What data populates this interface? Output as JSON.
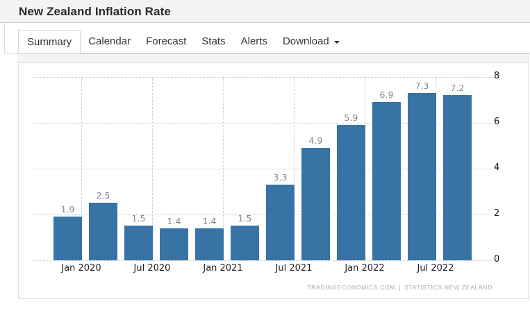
{
  "page": {
    "title": "New Zealand Inflation Rate"
  },
  "tabs": {
    "active": "Summary",
    "items": [
      {
        "label": "Summary"
      },
      {
        "label": "Calendar"
      },
      {
        "label": "Forecast"
      },
      {
        "label": "Stats"
      },
      {
        "label": "Alerts"
      },
      {
        "label": "Download"
      }
    ]
  },
  "chart_data": {
    "type": "bar",
    "title": "New Zealand Inflation Rate",
    "values": [
      1.9,
      2.5,
      1.5,
      1.4,
      1.4,
      1.5,
      3.3,
      4.9,
      5.9,
      6.9,
      7.3,
      7.2
    ],
    "bar_value_labels": [
      "1.9",
      "2.5",
      "1.5",
      "1.4",
      "1.4",
      "1.5",
      "3.3",
      "4.9",
      "5.9",
      "6.9",
      "7.3",
      "7.2"
    ],
    "x_tick_labels": [
      "Jan 2020",
      "Jul 2020",
      "Jan 2021",
      "Jul 2021",
      "Jan 2022",
      "Jul 2022"
    ],
    "y_ticks": [
      0,
      2,
      4,
      6,
      8
    ],
    "ylim": [
      0,
      8
    ],
    "y_axis_position": "right",
    "grid": "dotted",
    "bar_color": "#3773a5",
    "legend": "none",
    "xlabel": "",
    "ylabel": ""
  },
  "attribution": {
    "source_left": "TRADINGECONOMICS.COM",
    "separator": "|",
    "source_right": "STATISTICS NEW ZEALAND"
  }
}
